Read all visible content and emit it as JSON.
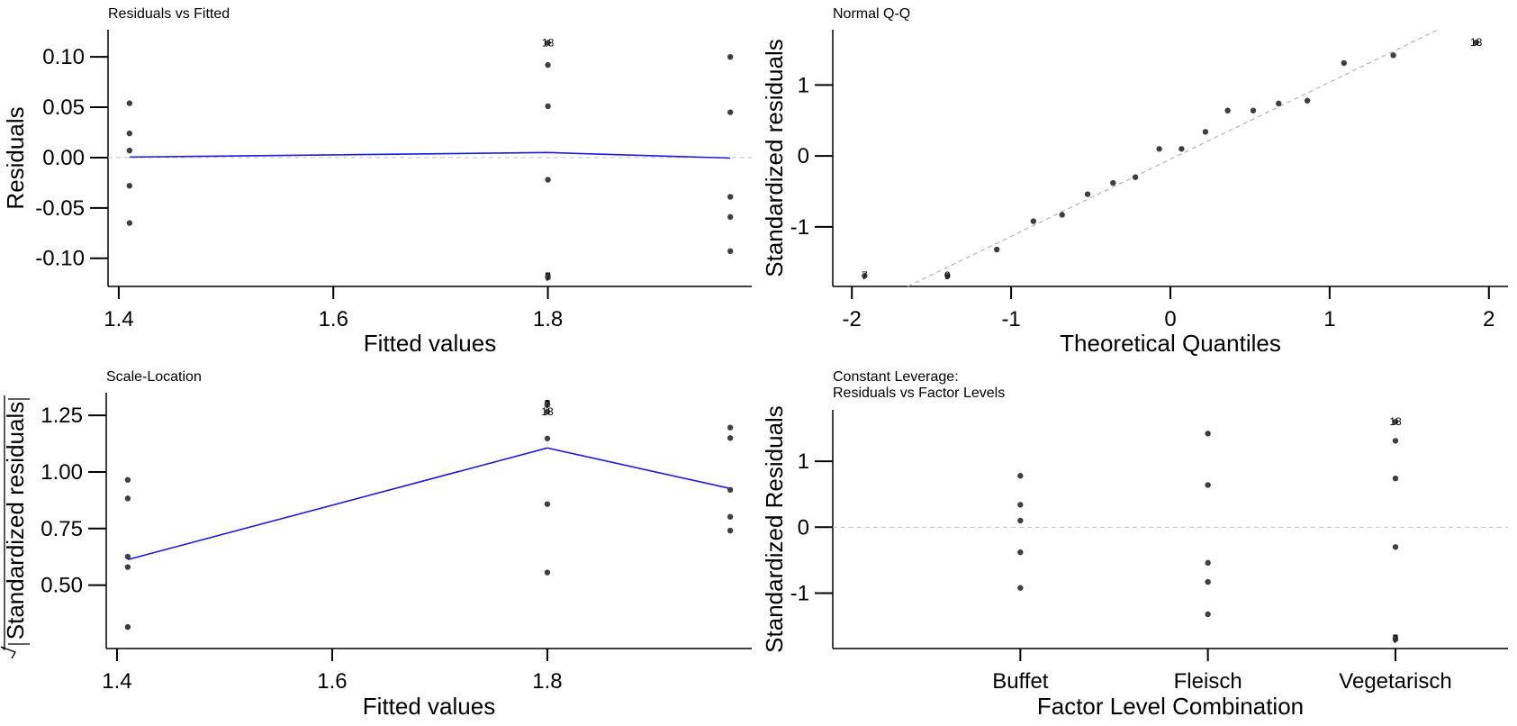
{
  "chart_data": [
    {
      "type": "scatter",
      "title": "Residuals vs Fitted",
      "xlabel": "Fitted values",
      "ylabel": "Residuals",
      "xlim": [
        1.39,
        1.99
      ],
      "ylim": [
        -0.128,
        0.127
      ],
      "xticks": [
        1.4,
        1.6,
        1.8
      ],
      "xtick_labels": [
        "1.4",
        "1.6",
        "1.8"
      ],
      "yticks": [
        0.1,
        0.05,
        0.0,
        -0.05,
        -0.1
      ],
      "ytick_labels": [
        "0.10",
        "0.05",
        "0.00",
        "-0.05",
        "-0.10"
      ],
      "points": [
        {
          "x": 1.41,
          "y": 0.054
        },
        {
          "x": 1.41,
          "y": 0.024
        },
        {
          "x": 1.41,
          "y": 0.007
        },
        {
          "x": 1.41,
          "y": -0.028
        },
        {
          "x": 1.41,
          "y": -0.065
        },
        {
          "x": 1.8,
          "y": 0.114,
          "label": "18"
        },
        {
          "x": 1.8,
          "y": 0.092
        },
        {
          "x": 1.8,
          "y": 0.051
        },
        {
          "x": 1.8,
          "y": -0.022
        },
        {
          "x": 1.8,
          "y": -0.118,
          "label": "5"
        },
        {
          "x": 1.8,
          "y": -0.119,
          "label": "7"
        },
        {
          "x": 1.97,
          "y": 0.1
        },
        {
          "x": 1.97,
          "y": 0.045
        },
        {
          "x": 1.97,
          "y": -0.039
        },
        {
          "x": 1.97,
          "y": -0.059
        },
        {
          "x": 1.97,
          "y": -0.093
        }
      ],
      "smooth": [
        {
          "x": 1.41,
          "y": 0.0005
        },
        {
          "x": 1.8,
          "y": 0.005
        },
        {
          "x": 1.97,
          "y": -0.0005
        }
      ],
      "hline": 0
    },
    {
      "type": "scatter",
      "title": "Normal Q-Q",
      "xlabel": "Theoretical Quantiles",
      "ylabel": "Standardized residuals",
      "xlim": [
        -2.12,
        2.12
      ],
      "ylim": [
        -1.84,
        1.78
      ],
      "xticks": [
        -2,
        -1,
        0,
        1,
        2
      ],
      "xtick_labels": [
        "-2",
        "-1",
        "0",
        "1",
        "2"
      ],
      "yticks": [
        1,
        0,
        -1
      ],
      "ytick_labels": [
        "1",
        "0",
        "-1"
      ],
      "points": [
        {
          "x": -1.92,
          "y": -1.69,
          "label": "7"
        },
        {
          "x": -1.4,
          "y": -1.69,
          "label": "9"
        },
        {
          "x": -1.09,
          "y": -1.32
        },
        {
          "x": -0.86,
          "y": -0.92
        },
        {
          "x": -0.68,
          "y": -0.83
        },
        {
          "x": -0.52,
          "y": -0.54
        },
        {
          "x": -0.36,
          "y": -0.38
        },
        {
          "x": -0.22,
          "y": -0.3
        },
        {
          "x": -0.07,
          "y": 0.1
        },
        {
          "x": 0.07,
          "y": 0.1
        },
        {
          "x": 0.22,
          "y": 0.34
        },
        {
          "x": 0.36,
          "y": 0.64
        },
        {
          "x": 0.52,
          "y": 0.64
        },
        {
          "x": 0.68,
          "y": 0.74
        },
        {
          "x": 0.86,
          "y": 0.78
        },
        {
          "x": 1.09,
          "y": 1.31
        },
        {
          "x": 1.4,
          "y": 1.42
        },
        {
          "x": 1.92,
          "y": 1.6,
          "label": "18"
        }
      ],
      "refline": [
        {
          "x": -1.65,
          "y": -1.84
        },
        {
          "x": 1.68,
          "y": 1.78
        }
      ]
    },
    {
      "type": "scatter",
      "title": "Scale-Location",
      "xlabel": "Fitted values",
      "ylabel": "Standardized residuals",
      "xlim": [
        1.39,
        1.99
      ],
      "ylim": [
        0.22,
        1.35
      ],
      "xticks": [
        1.4,
        1.6,
        1.8
      ],
      "xtick_labels": [
        "1.4",
        "1.6",
        "1.8"
      ],
      "yticks": [
        1.25,
        1.0,
        0.75,
        0.5
      ],
      "ytick_labels": [
        "1.25",
        "1.00",
        "0.75",
        "0.50"
      ],
      "points": [
        {
          "x": 1.41,
          "y": 0.965
        },
        {
          "x": 1.41,
          "y": 0.883
        },
        {
          "x": 1.41,
          "y": 0.626
        },
        {
          "x": 1.41,
          "y": 0.58
        },
        {
          "x": 1.41,
          "y": 0.315
        },
        {
          "x": 1.8,
          "y": 1.3,
          "label": "5"
        },
        {
          "x": 1.8,
          "y": 1.296,
          "label": "7"
        },
        {
          "x": 1.8,
          "y": 1.266,
          "label": "18"
        },
        {
          "x": 1.8,
          "y": 1.148
        },
        {
          "x": 1.8,
          "y": 0.858
        },
        {
          "x": 1.8,
          "y": 0.556
        },
        {
          "x": 1.97,
          "y": 1.196
        },
        {
          "x": 1.97,
          "y": 1.15
        },
        {
          "x": 1.97,
          "y": 0.921
        },
        {
          "x": 1.97,
          "y": 0.802
        },
        {
          "x": 1.97,
          "y": 0.741
        }
      ],
      "smooth": [
        {
          "x": 1.41,
          "y": 0.613
        },
        {
          "x": 1.8,
          "y": 1.106
        },
        {
          "x": 1.97,
          "y": 0.927
        }
      ]
    },
    {
      "type": "scatter",
      "title": "Constant Leverage:",
      "subtitle": "Residuals vs Factor Levels",
      "xlabel": "Factor Level Combination",
      "ylabel": "Standardized Residuals",
      "categories": [
        "Buffet",
        "Fleisch",
        "Vegetarisch"
      ],
      "xlim": [
        0,
        3.6
      ],
      "ylim": [
        -1.84,
        1.78
      ],
      "xticks": [
        1,
        2,
        3
      ],
      "yticks": [
        1,
        0,
        -1
      ],
      "ytick_labels": [
        "1",
        "0",
        "-1"
      ],
      "points": [
        {
          "x": 1,
          "y": 0.78
        },
        {
          "x": 1,
          "y": 0.34
        },
        {
          "x": 1,
          "y": 0.1
        },
        {
          "x": 1,
          "y": -0.38
        },
        {
          "x": 1,
          "y": -0.92
        },
        {
          "x": 2,
          "y": 1.42
        },
        {
          "x": 2,
          "y": 0.64
        },
        {
          "x": 2,
          "y": -0.54
        },
        {
          "x": 2,
          "y": -0.83
        },
        {
          "x": 2,
          "y": -1.32
        },
        {
          "x": 3,
          "y": 1.6,
          "label": "18"
        },
        {
          "x": 3,
          "y": 1.31
        },
        {
          "x": 3,
          "y": 0.74
        },
        {
          "x": 3,
          "y": -0.3
        },
        {
          "x": 3,
          "y": -1.69,
          "label": "5"
        },
        {
          "x": 3,
          "y": -1.7,
          "label": "7"
        }
      ],
      "hline": 0
    }
  ]
}
